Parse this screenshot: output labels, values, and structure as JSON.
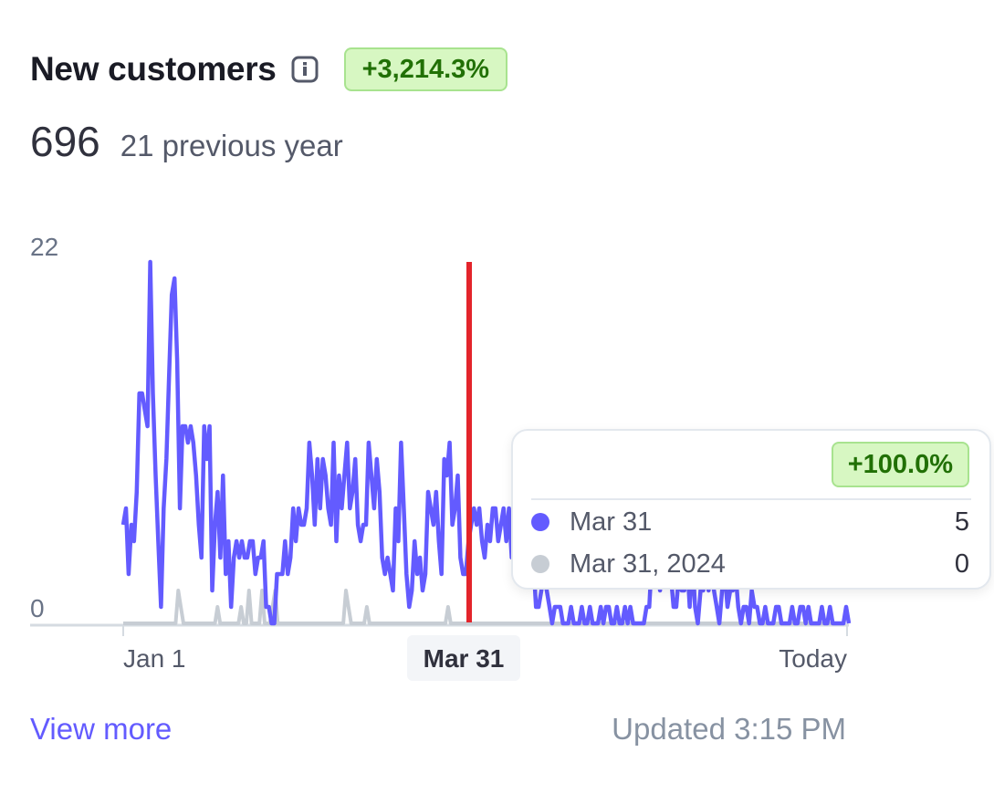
{
  "header": {
    "title": "New customers",
    "info_icon": "info-icon",
    "change_badge": "+3,214.3%"
  },
  "stats": {
    "value": "696",
    "previous": "21 previous year"
  },
  "footer": {
    "link": "View more",
    "updated": "Updated 3:15 PM"
  },
  "tooltip": {
    "badge": "+100.0%",
    "rows": [
      {
        "label": "Mar 31",
        "value": "5",
        "color": "#635bff"
      },
      {
        "label": "Mar 31, 2024",
        "value": "0",
        "color": "#c7cdd4"
      }
    ]
  },
  "chart_data": {
    "type": "line",
    "ylim": [
      0,
      22
    ],
    "y_ticks": [
      "22",
      "0"
    ],
    "x_tick_labels": [
      "Jan 1",
      "Mar 31",
      "Today"
    ],
    "highlight_label": "Mar 31",
    "grid": false,
    "colors": {
      "current": "#635bff",
      "previous": "#c7cdd4",
      "cursor": "#e3242b"
    },
    "series": [
      {
        "values": [
          6,
          7,
          3,
          6,
          5,
          8,
          14,
          14,
          13,
          12,
          22,
          14,
          9,
          5,
          1,
          7,
          10,
          15,
          20,
          21,
          16,
          7,
          12,
          12,
          11,
          12,
          11,
          9,
          6,
          4,
          12,
          10,
          12,
          2,
          6,
          8,
          4,
          9,
          3,
          5,
          1,
          4,
          5,
          4,
          5,
          4,
          4,
          5,
          5,
          3,
          4,
          4,
          5,
          1,
          1,
          0,
          0,
          3,
          3,
          3,
          5,
          3,
          4,
          7,
          5,
          7,
          6,
          6,
          7,
          11,
          9,
          6,
          10,
          7,
          10,
          9,
          7,
          6,
          11,
          5,
          9,
          7,
          9,
          11,
          7,
          8,
          10,
          6,
          5,
          6,
          6,
          11,
          9,
          7,
          10,
          8,
          4,
          3,
          4,
          3,
          2,
          7,
          5,
          11,
          7,
          3,
          1,
          2,
          5,
          3,
          4,
          2,
          3,
          8,
          7,
          6,
          8,
          5,
          3,
          10,
          9,
          11,
          6,
          7,
          9,
          4,
          3,
          3,
          5,
          6,
          7,
          6,
          7,
          5,
          4,
          6,
          5,
          7,
          7,
          5,
          6,
          7,
          5,
          7,
          4,
          6,
          5,
          6,
          4,
          4,
          6,
          3,
          4,
          1,
          1,
          2,
          3,
          2,
          1,
          0,
          1,
          1,
          1,
          0,
          0,
          0,
          1,
          0,
          0,
          0,
          1,
          0,
          0,
          1,
          0,
          0,
          0,
          1,
          0,
          1,
          1,
          0,
          0,
          1,
          0,
          0,
          1,
          0,
          1,
          0,
          0,
          0,
          0,
          0,
          1,
          1,
          4,
          3,
          4,
          2,
          5,
          4,
          3,
          3,
          1,
          1,
          3,
          2,
          2,
          4,
          1,
          4,
          1,
          0,
          2,
          2,
          3,
          2,
          3,
          2,
          1,
          0,
          2,
          3,
          1,
          2,
          2,
          3,
          1,
          0,
          1,
          1,
          0,
          2,
          1,
          1,
          0,
          0,
          1,
          0,
          0,
          0,
          1,
          1,
          0,
          0,
          0,
          0,
          1,
          0,
          0,
          1,
          1,
          0,
          1,
          0,
          0,
          0,
          0,
          1,
          0,
          0,
          1,
          0,
          0,
          0,
          0,
          0,
          1,
          0
        ]
      },
      {
        "values": [
          0,
          0,
          0,
          0,
          0,
          0,
          0,
          0,
          0,
          0,
          0,
          0,
          0,
          0,
          0,
          0,
          0,
          0,
          0,
          0,
          0,
          2,
          1,
          0,
          0,
          0,
          0,
          0,
          0,
          0,
          0,
          0,
          0,
          0,
          0,
          0,
          1,
          0,
          0,
          0,
          0,
          0,
          0,
          0,
          0,
          1,
          0,
          0,
          2,
          0,
          0,
          0,
          0,
          2,
          0,
          0,
          0,
          1,
          2,
          0,
          0,
          0,
          0,
          0,
          0,
          0,
          0,
          0,
          0,
          0,
          0,
          0,
          0,
          0,
          0,
          0,
          0,
          0,
          0,
          0,
          0,
          0,
          0,
          0,
          0,
          2,
          1,
          0,
          0,
          0,
          0,
          0,
          0,
          1,
          0,
          0,
          0,
          0,
          0,
          0,
          0,
          0,
          0,
          0,
          0,
          0,
          0,
          0,
          0,
          0,
          0,
          0,
          0,
          0,
          0,
          0,
          0,
          0,
          0,
          0,
          0,
          0,
          0,
          0,
          1,
          0,
          0,
          0,
          0,
          0,
          0,
          0,
          0,
          0,
          0,
          0,
          0,
          0,
          0,
          0,
          0,
          0,
          0,
          0,
          0,
          0,
          0,
          0,
          0,
          0,
          0,
          0,
          0,
          0,
          0,
          0,
          0,
          0,
          0,
          0,
          0,
          0,
          0,
          0,
          0,
          0,
          0,
          0,
          0,
          0,
          0,
          0,
          0,
          0,
          0,
          0,
          0,
          0,
          0,
          0,
          0,
          0,
          0,
          0,
          0,
          0,
          0,
          0,
          0,
          0,
          0,
          0,
          0,
          0,
          0,
          0,
          0,
          0,
          0,
          0,
          0,
          0,
          0,
          0,
          0,
          0,
          0,
          0,
          0,
          0,
          0,
          0,
          0,
          0,
          0,
          0,
          0,
          0,
          0,
          0,
          0,
          0,
          0,
          0,
          0,
          0,
          0,
          0,
          0,
          0,
          0,
          0,
          0,
          0,
          0,
          0,
          0,
          0,
          0,
          0,
          0,
          0,
          0,
          0,
          0,
          0,
          0,
          0,
          0,
          0,
          0,
          0,
          0,
          0,
          0,
          0,
          0,
          0,
          0,
          0,
          0,
          0,
          0,
          0,
          0,
          0,
          0,
          0,
          0,
          0,
          0,
          0,
          0,
          0,
          0,
          0,
          1,
          0
        ]
      }
    ]
  }
}
